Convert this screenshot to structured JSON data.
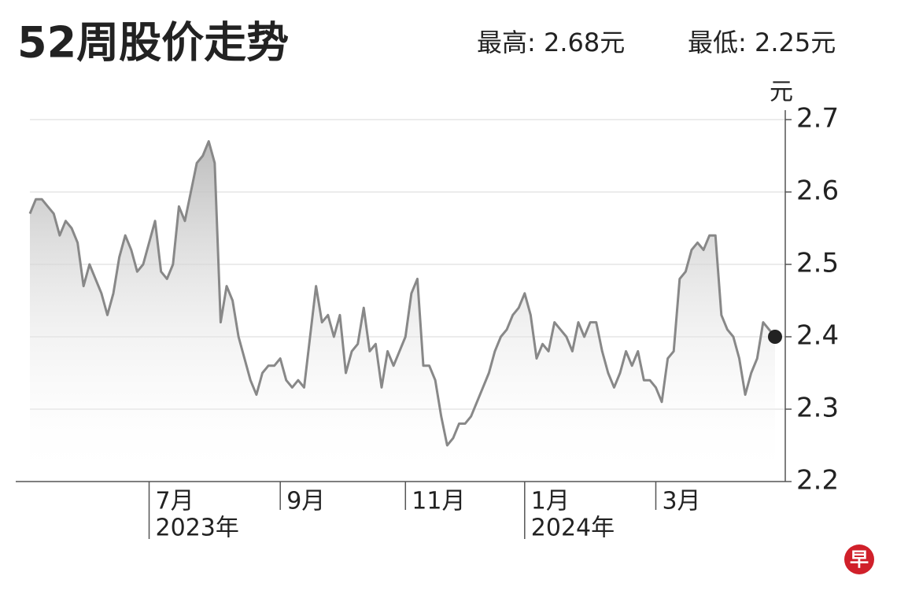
{
  "chart_data": {
    "type": "line",
    "title": "52周股价走势",
    "high_label": "最高: 2.68元",
    "low_label": "最低: 2.25元",
    "y_unit": "元",
    "logo": "早",
    "ylim": [
      2.2,
      2.7
    ],
    "yticks": [
      2.2,
      2.3,
      2.4,
      2.5,
      2.6,
      2.7
    ],
    "grid": true,
    "color": "#888888",
    "categories": [
      null,
      null,
      null,
      null,
      null,
      null,
      null,
      null,
      null,
      null,
      null,
      null,
      null,
      null,
      null,
      null,
      null,
      null,
      null,
      null,
      "7月",
      null,
      null,
      null,
      null,
      null,
      null,
      null,
      null,
      null,
      null,
      null,
      null,
      null,
      null,
      null,
      null,
      null,
      null,
      null,
      null,
      null,
      "9月",
      null,
      null,
      null,
      null,
      null,
      null,
      null,
      null,
      null,
      null,
      null,
      null,
      null,
      null,
      null,
      null,
      null,
      null,
      null,
      null,
      "11月",
      null,
      null,
      null,
      null,
      null,
      null,
      null,
      null,
      null,
      null,
      null,
      null,
      null,
      null,
      null,
      null,
      null,
      null,
      null,
      "1月",
      null,
      null,
      null,
      null,
      null,
      null,
      null,
      null,
      null,
      null,
      null,
      null,
      null,
      null,
      null,
      null,
      null,
      null,
      null,
      null,
      null,
      "3月",
      null,
      null,
      null,
      null,
      null,
      null,
      null,
      null,
      null,
      null,
      null,
      null,
      null,
      null,
      null,
      null,
      null,
      null,
      null,
      null
    ],
    "year_labels": {
      "20": "2023年",
      "83": "2024年"
    },
    "values": [
      2.57,
      2.59,
      2.59,
      2.58,
      2.57,
      2.54,
      2.56,
      2.55,
      2.53,
      2.47,
      2.5,
      2.48,
      2.46,
      2.43,
      2.46,
      2.51,
      2.54,
      2.52,
      2.49,
      2.5,
      2.53,
      2.56,
      2.49,
      2.48,
      2.5,
      2.58,
      2.56,
      2.6,
      2.64,
      2.65,
      2.67,
      2.64,
      2.42,
      2.47,
      2.45,
      2.4,
      2.37,
      2.34,
      2.32,
      2.35,
      2.36,
      2.36,
      2.37,
      2.34,
      2.33,
      2.34,
      2.33,
      2.4,
      2.47,
      2.42,
      2.43,
      2.4,
      2.43,
      2.35,
      2.38,
      2.39,
      2.44,
      2.38,
      2.39,
      2.33,
      2.38,
      2.36,
      2.38,
      2.4,
      2.46,
      2.48,
      2.36,
      2.36,
      2.34,
      2.29,
      2.25,
      2.26,
      2.28,
      2.28,
      2.29,
      2.31,
      2.33,
      2.35,
      2.38,
      2.4,
      2.41,
      2.43,
      2.44,
      2.46,
      2.43,
      2.37,
      2.39,
      2.38,
      2.42,
      2.41,
      2.4,
      2.38,
      2.42,
      2.4,
      2.42,
      2.42,
      2.38,
      2.35,
      2.33,
      2.35,
      2.38,
      2.36,
      2.38,
      2.34,
      2.34,
      2.33,
      2.31,
      2.37,
      2.38,
      2.48,
      2.49,
      2.52,
      2.53,
      2.52,
      2.54,
      2.54,
      2.43,
      2.41,
      2.4,
      2.37,
      2.32,
      2.35,
      2.37,
      2.42,
      2.41,
      2.4
    ]
  }
}
